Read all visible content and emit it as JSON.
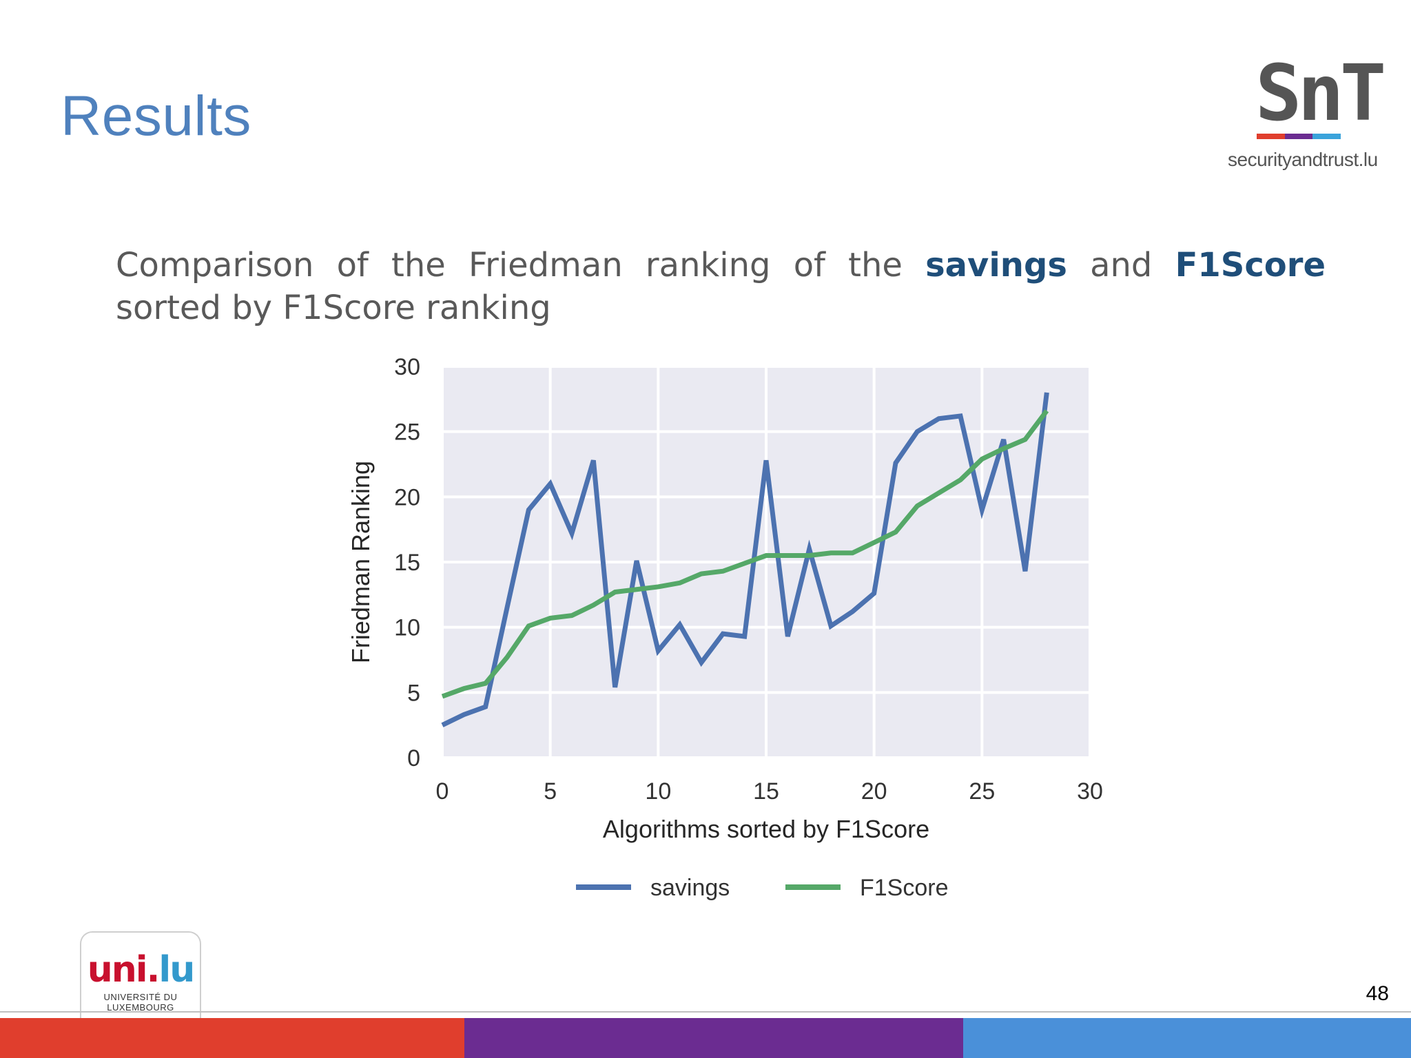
{
  "slide": {
    "title": "Results",
    "subtitle_parts": [
      "Comparison of the Friedman ranking of the ",
      "savings",
      " and ",
      "F1Score",
      " sorted by F1Score ranking"
    ],
    "page_number": "48"
  },
  "logos": {
    "snt_letters": "SnT",
    "snt_url": "securityandtrust.lu",
    "uni_mark_red": "uni.",
    "uni_mark_blue": "lu",
    "uni_name_line1": "UNIVERSITÉ DU",
    "uni_name_line2": "LUXEMBOURG"
  },
  "colors": {
    "brand_red": "#e03e2d",
    "brand_purple": "#6b2c91",
    "brand_blue": "#4a90d9",
    "savings": "#4c72b0",
    "f1score": "#55a868",
    "plot_bg": "#eaeaf2"
  },
  "chart_data": {
    "type": "line",
    "title": "",
    "xlabel": "Algorithms sorted by F1Score",
    "ylabel": "Friedman Ranking",
    "xlim": [
      0,
      30
    ],
    "ylim": [
      0,
      30
    ],
    "xticks": [
      0,
      5,
      10,
      15,
      20,
      25,
      30
    ],
    "yticks": [
      0,
      5,
      10,
      15,
      20,
      25,
      30
    ],
    "grid": true,
    "legend_position": "bottom-center",
    "x": [
      0,
      1,
      2,
      3,
      4,
      5,
      6,
      7,
      8,
      9,
      10,
      11,
      12,
      13,
      14,
      15,
      16,
      17,
      18,
      19,
      20,
      21,
      22,
      23,
      24,
      25,
      26,
      27,
      28
    ],
    "series": [
      {
        "name": "savings",
        "color": "#4c72b0",
        "values": [
          2.5,
          3.3,
          3.9,
          11.5,
          19.0,
          21.0,
          17.2,
          22.8,
          5.4,
          15.1,
          8.2,
          10.2,
          7.3,
          9.5,
          9.3,
          22.8,
          9.3,
          16.0,
          10.1,
          11.2,
          12.6,
          22.6,
          25.0,
          26.0,
          26.2,
          19.0,
          24.4,
          14.3,
          28.0
        ]
      },
      {
        "name": "F1Score",
        "color": "#55a868",
        "values": [
          4.7,
          5.3,
          5.7,
          7.7,
          10.1,
          10.7,
          10.9,
          11.7,
          12.7,
          12.9,
          13.1,
          13.4,
          14.1,
          14.3,
          14.9,
          15.5,
          15.5,
          15.5,
          15.7,
          15.7,
          16.5,
          17.3,
          19.3,
          20.3,
          21.3,
          22.9,
          23.7,
          24.4,
          26.6
        ]
      }
    ]
  }
}
